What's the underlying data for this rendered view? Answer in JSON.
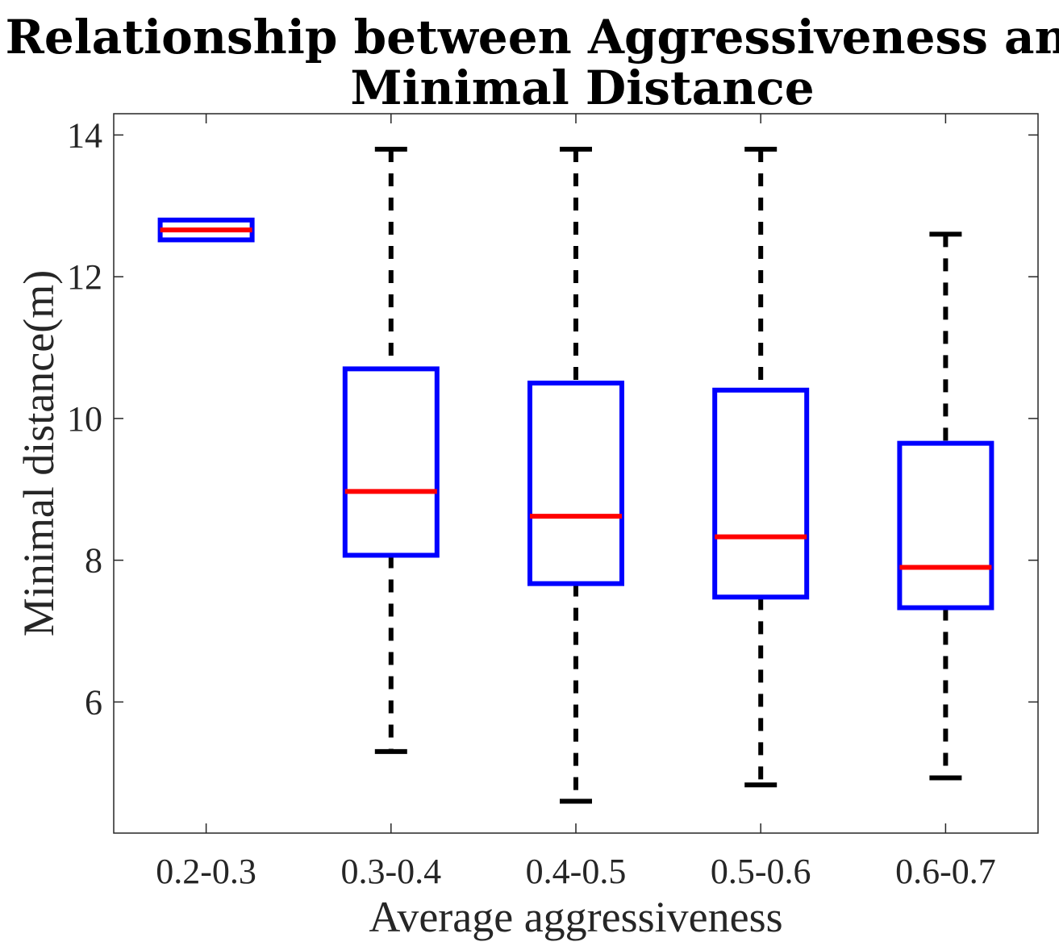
{
  "chart_data": {
    "type": "boxplot",
    "title": [
      "Relationship between Aggressiveness and",
      "Minimal Distance"
    ],
    "xlabel": "Average aggressiveness",
    "ylabel": "Minimal distance(m)",
    "ylim": [
      4.15,
      14.3
    ],
    "yticks": [
      6,
      8,
      10,
      12,
      14
    ],
    "ytick_labels": [
      "6",
      "8",
      "10",
      "12",
      "14"
    ],
    "categories": [
      "0.2-0.3",
      "0.3-0.4",
      "0.4-0.5",
      "0.5-0.6",
      "0.6-0.7"
    ],
    "boxes": [
      {
        "category": "0.2-0.3",
        "whisker_low": 12.52,
        "q1": 12.52,
        "median": 12.66,
        "q3": 12.8,
        "whisker_high": 12.8
      },
      {
        "category": "0.3-0.4",
        "whisker_low": 5.3,
        "q1": 8.07,
        "median": 8.97,
        "q3": 10.7,
        "whisker_high": 13.8
      },
      {
        "category": "0.4-0.5",
        "whisker_low": 4.6,
        "q1": 7.67,
        "median": 8.62,
        "q3": 10.5,
        "whisker_high": 13.8
      },
      {
        "category": "0.5-0.6",
        "whisker_low": 4.83,
        "q1": 7.48,
        "median": 8.33,
        "q3": 10.4,
        "whisker_high": 13.8
      },
      {
        "category": "0.6-0.7",
        "whisker_low": 4.93,
        "q1": 7.33,
        "median": 7.9,
        "q3": 9.65,
        "whisker_high": 12.6
      }
    ],
    "colors": {
      "box": "#0000ff",
      "median": "#ff0000",
      "whisker": "#000000",
      "axis": "#262626"
    }
  }
}
